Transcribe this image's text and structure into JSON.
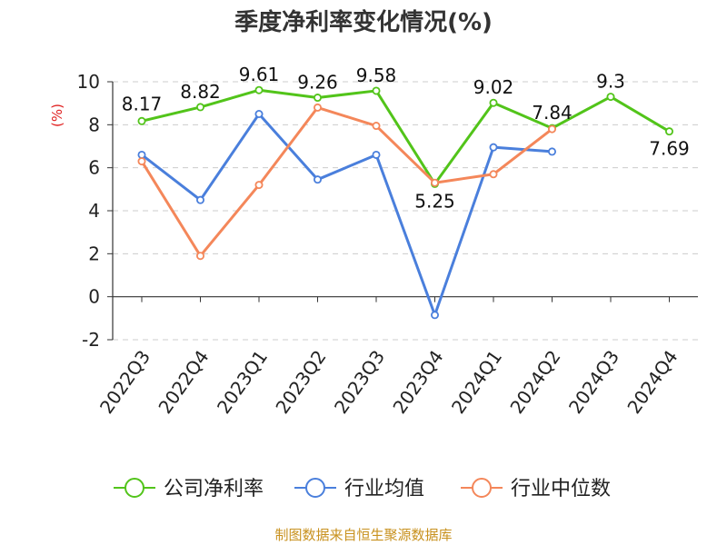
{
  "chart_data": {
    "type": "line",
    "title": "季度净利率变化情况(%)",
    "unit": "(%)",
    "categories": [
      "2022Q3",
      "2022Q4",
      "2023Q1",
      "2023Q2",
      "2023Q3",
      "2023Q4",
      "2024Q1",
      "2024Q2",
      "2024Q3",
      "2024Q4"
    ],
    "ylim": [
      -2,
      10
    ],
    "yticks": [
      "-2",
      "0",
      "2",
      "4",
      "6",
      "8",
      "10"
    ],
    "grid": true,
    "legend_position": "bottom",
    "series": [
      {
        "name": "公司净利率",
        "color": "#52c41a",
        "values": [
          8.17,
          8.82,
          9.61,
          9.26,
          9.58,
          5.25,
          9.02,
          7.84,
          9.3,
          7.69
        ],
        "labels": [
          "8.17",
          "8.82",
          "9.61",
          "9.26",
          "9.58",
          "5.25",
          "9.02",
          "7.84",
          "9.3",
          "7.69"
        ]
      },
      {
        "name": "行业均值",
        "color": "#4a7fdc",
        "values": [
          6.6,
          4.5,
          8.5,
          5.45,
          6.6,
          -0.85,
          6.95,
          6.75,
          null,
          null
        ]
      },
      {
        "name": "行业中位数",
        "color": "#f4875a",
        "values": [
          6.3,
          1.9,
          5.2,
          8.8,
          7.95,
          5.3,
          5.7,
          7.8,
          null,
          null
        ]
      }
    ]
  },
  "source": "制图数据来自恒生聚源数据库"
}
